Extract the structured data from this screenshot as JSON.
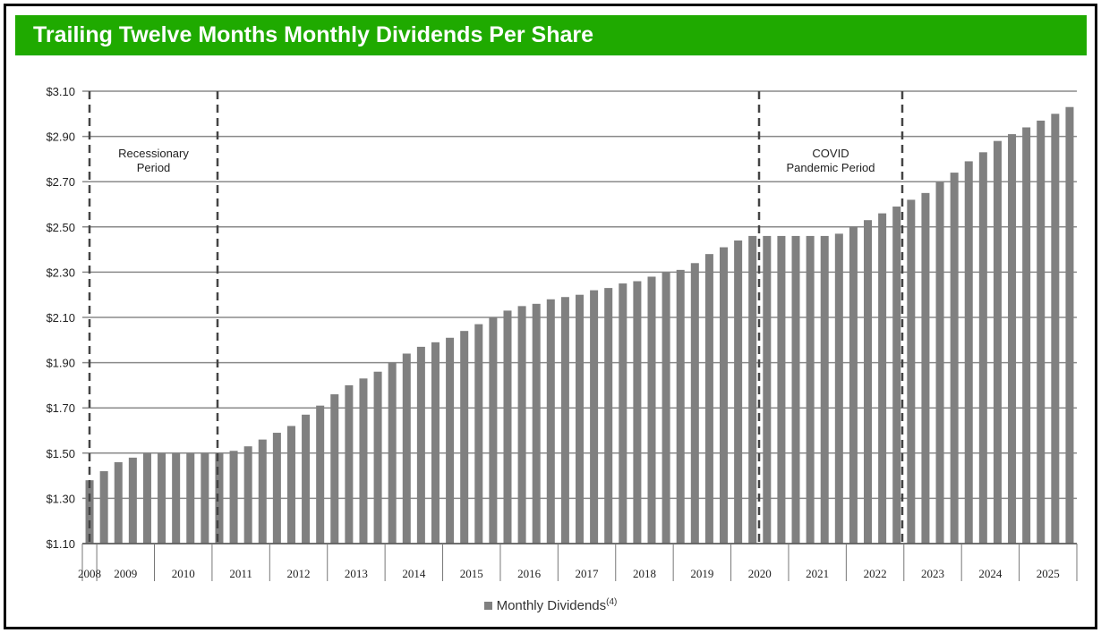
{
  "title": "Trailing Twelve Months Monthly Dividends Per Share",
  "chart_data": {
    "type": "bar",
    "y_axis": {
      "min": 1.1,
      "max": 3.1,
      "ticks": [
        "$1.10",
        "$1.30",
        "$1.50",
        "$1.70",
        "$1.90",
        "$2.10",
        "$2.30",
        "$2.50",
        "$2.70",
        "$2.90",
        "$3.10"
      ],
      "grid": true
    },
    "x_axis": {
      "years": [
        "2008",
        "2009",
        "2010",
        "2011",
        "2012",
        "2013",
        "2014",
        "2015",
        "2016",
        "2017",
        "2018",
        "2019",
        "2020",
        "2021",
        "2022",
        "2023",
        "2024",
        "2025"
      ],
      "bars_per_year": [
        1,
        4,
        4,
        4,
        4,
        4,
        4,
        4,
        4,
        4,
        4,
        4,
        4,
        4,
        4,
        4,
        4,
        4
      ]
    },
    "series": [
      {
        "name": "Monthly Dividends",
        "name_superscript": "(4)",
        "color": "#808080",
        "values": [
          1.38,
          1.42,
          1.46,
          1.48,
          1.5,
          1.5,
          1.5,
          1.5,
          1.5,
          1.5,
          1.51,
          1.53,
          1.56,
          1.59,
          1.62,
          1.67,
          1.71,
          1.76,
          1.8,
          1.83,
          1.86,
          1.9,
          1.94,
          1.97,
          1.99,
          2.01,
          2.04,
          2.07,
          2.1,
          2.13,
          2.15,
          2.16,
          2.18,
          2.19,
          2.2,
          2.22,
          2.23,
          2.25,
          2.26,
          2.28,
          2.3,
          2.31,
          2.34,
          2.38,
          2.41,
          2.44,
          2.46,
          2.46,
          2.46,
          2.46,
          2.46,
          2.46,
          2.47,
          2.5,
          2.53,
          2.56,
          2.59,
          2.62,
          2.65,
          2.7,
          2.74,
          2.79,
          2.83,
          2.88,
          2.91,
          2.94,
          2.97,
          3.0,
          3.03
        ]
      }
    ],
    "periods": [
      {
        "label_lines": [
          "Recessionary",
          "Period"
        ],
        "start_bar": 0,
        "end_bar": 9
      },
      {
        "label_lines": [
          "COVID",
          "Pandemic Period"
        ],
        "start_bar": 46,
        "end_bar": 56
      }
    ],
    "legend": {
      "position": "bottom-center"
    }
  }
}
